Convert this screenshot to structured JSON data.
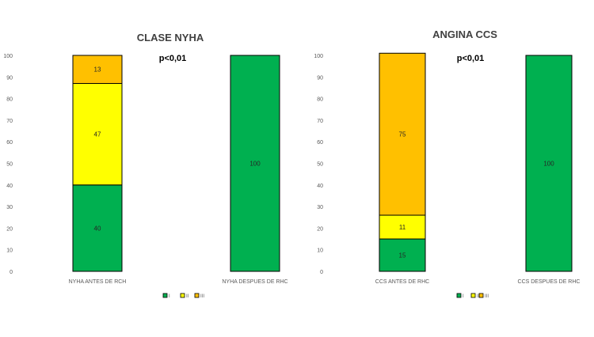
{
  "chart_data": [
    {
      "type": "bar",
      "stacked": true,
      "title": "CLASE NYHA",
      "annotation": "p<0,01",
      "categories": [
        "NYHA ANTES DE RCH",
        "NYHA DESPUES DE RHC"
      ],
      "series": [
        {
          "name": "I",
          "values": [
            40,
            100
          ],
          "color": "#00b050"
        },
        {
          "name": "II",
          "values": [
            47,
            0
          ],
          "color": "#ffff00"
        },
        {
          "name": "III",
          "values": [
            13,
            0
          ],
          "color": "#ffc000"
        }
      ],
      "ylim": [
        0,
        100
      ],
      "yticks": [
        0,
        10,
        20,
        30,
        40,
        50,
        60,
        70,
        80,
        90,
        100
      ],
      "grid": false,
      "legend_position": "bottom"
    },
    {
      "type": "bar",
      "stacked": true,
      "title": "ANGINA CCS",
      "annotation": "p<0,01",
      "categories": [
        "CCS ANTES DE RHC",
        "CCS DESPUES DE RHC"
      ],
      "series": [
        {
          "name": "I",
          "values": [
            15,
            100
          ],
          "color": "#00b050"
        },
        {
          "name": "II",
          "values": [
            11,
            0
          ],
          "color": "#ffff00"
        },
        {
          "name": "III",
          "values": [
            75,
            0
          ],
          "color": "#ffc000"
        }
      ],
      "ylim": [
        0,
        100
      ],
      "yticks": [
        0,
        10,
        20,
        30,
        40,
        50,
        60,
        70,
        80,
        90,
        100
      ],
      "grid": false,
      "legend_position": "bottom"
    }
  ]
}
